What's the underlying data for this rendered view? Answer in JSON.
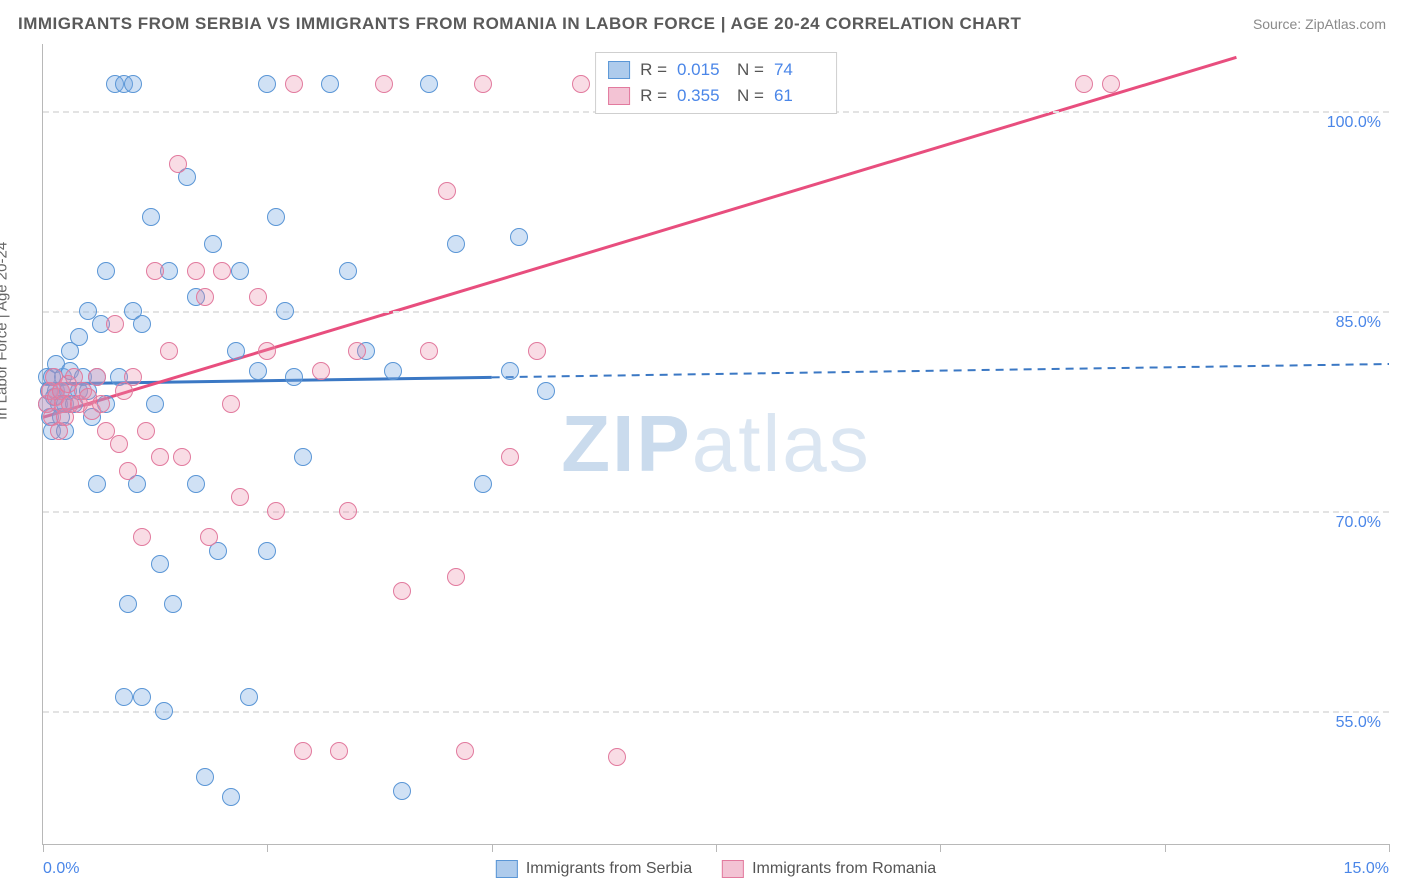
{
  "title": "IMMIGRANTS FROM SERBIA VS IMMIGRANTS FROM ROMANIA IN LABOR FORCE | AGE 20-24 CORRELATION CHART",
  "source": "Source: ZipAtlas.com",
  "watermark_bold": "ZIP",
  "watermark_rest": "atlas",
  "y_axis_label": "In Labor Force | Age 20-24",
  "x_min_label": "0.0%",
  "x_max_label": "15.0%",
  "chart": {
    "type": "scatter",
    "xlim": [
      0,
      15
    ],
    "ylim": [
      45,
      105
    ],
    "y_ticks": [
      55.0,
      70.0,
      85.0,
      100.0
    ],
    "y_tick_labels": [
      "55.0%",
      "70.0%",
      "85.0%",
      "100.0%"
    ],
    "x_ticks": [
      0,
      2.5,
      5.0,
      7.5,
      10.0,
      12.5,
      15.0
    ],
    "grid_color": "#e3e3e3",
    "background_color": "#ffffff",
    "axis_color": "#b8b8b8",
    "tick_label_color": "#4a86e8",
    "axis_label_color": "#666666",
    "marker_radius": 9,
    "marker_border_width": 1.5,
    "trend_width": 3
  },
  "series": [
    {
      "name": "Immigrants from Serbia",
      "fill_color": "rgba(120,170,225,0.35)",
      "stroke_color": "#5a96d6",
      "swatch_fill": "#aecbec",
      "swatch_border": "#5a96d6",
      "line_color": "#3b78c4",
      "R": "0.015",
      "N": "74",
      "trend": {
        "x1": 0,
        "y1": 79.5,
        "x2": 15,
        "y2": 81.0,
        "solid_until_x": 5.0
      },
      "points": [
        [
          0.05,
          78
        ],
        [
          0.05,
          80
        ],
        [
          0.07,
          79
        ],
        [
          0.08,
          77
        ],
        [
          0.1,
          76
        ],
        [
          0.1,
          80
        ],
        [
          0.12,
          78.5
        ],
        [
          0.15,
          79
        ],
        [
          0.15,
          81
        ],
        [
          0.18,
          78
        ],
        [
          0.2,
          79
        ],
        [
          0.2,
          77
        ],
        [
          0.22,
          80
        ],
        [
          0.25,
          78
        ],
        [
          0.25,
          76
        ],
        [
          0.28,
          79
        ],
        [
          0.3,
          80.5
        ],
        [
          0.3,
          82
        ],
        [
          0.35,
          78
        ],
        [
          0.4,
          79
        ],
        [
          0.4,
          83
        ],
        [
          0.45,
          80
        ],
        [
          0.5,
          79
        ],
        [
          0.5,
          85
        ],
        [
          0.55,
          77
        ],
        [
          0.6,
          80
        ],
        [
          0.6,
          72
        ],
        [
          0.65,
          84
        ],
        [
          0.7,
          78
        ],
        [
          0.7,
          88
        ],
        [
          0.8,
          102
        ],
        [
          0.85,
          80
        ],
        [
          0.9,
          56
        ],
        [
          0.9,
          102
        ],
        [
          0.95,
          63
        ],
        [
          1.0,
          102
        ],
        [
          1.0,
          85
        ],
        [
          1.05,
          72
        ],
        [
          1.1,
          84
        ],
        [
          1.1,
          56
        ],
        [
          1.2,
          92
        ],
        [
          1.25,
          78
        ],
        [
          1.3,
          66
        ],
        [
          1.35,
          55
        ],
        [
          1.4,
          88
        ],
        [
          1.45,
          63
        ],
        [
          1.6,
          95
        ],
        [
          1.7,
          86
        ],
        [
          1.7,
          72
        ],
        [
          1.8,
          50
        ],
        [
          1.9,
          90
        ],
        [
          1.95,
          67
        ],
        [
          2.1,
          48.5
        ],
        [
          2.15,
          82
        ],
        [
          2.2,
          88
        ],
        [
          2.3,
          56
        ],
        [
          2.4,
          80.5
        ],
        [
          2.5,
          102
        ],
        [
          2.5,
          67
        ],
        [
          2.6,
          92
        ],
        [
          2.7,
          85
        ],
        [
          2.8,
          80
        ],
        [
          2.9,
          74
        ],
        [
          3.2,
          102
        ],
        [
          3.4,
          88
        ],
        [
          3.6,
          82
        ],
        [
          3.9,
          80.5
        ],
        [
          4.0,
          49
        ],
        [
          4.3,
          102
        ],
        [
          4.6,
          90
        ],
        [
          4.9,
          72
        ],
        [
          5.2,
          80.5
        ],
        [
          5.3,
          90.5
        ],
        [
          5.6,
          79
        ]
      ]
    },
    {
      "name": "Immigrants from Romania",
      "fill_color": "rgba(235,140,170,0.30)",
      "stroke_color": "#e27a9e",
      "swatch_fill": "#f3c3d4",
      "swatch_border": "#e27a9e",
      "line_color": "#e84e7e",
      "R": "0.355",
      "N": "61",
      "trend": {
        "x1": 0,
        "y1": 77.0,
        "x2": 13.3,
        "y2": 104.0,
        "solid_until_x": 13.3
      },
      "points": [
        [
          0.05,
          78
        ],
        [
          0.08,
          79
        ],
        [
          0.1,
          77
        ],
        [
          0.12,
          80
        ],
        [
          0.15,
          78.5
        ],
        [
          0.18,
          76
        ],
        [
          0.2,
          79
        ],
        [
          0.22,
          78
        ],
        [
          0.25,
          77
        ],
        [
          0.28,
          79.5
        ],
        [
          0.3,
          78
        ],
        [
          0.35,
          80
        ],
        [
          0.4,
          78
        ],
        [
          0.45,
          79
        ],
        [
          0.5,
          78.5
        ],
        [
          0.55,
          77.5
        ],
        [
          0.6,
          80
        ],
        [
          0.65,
          78
        ],
        [
          0.7,
          76
        ],
        [
          0.8,
          84
        ],
        [
          0.85,
          75
        ],
        [
          0.9,
          79
        ],
        [
          0.95,
          73
        ],
        [
          1.0,
          80
        ],
        [
          1.1,
          68
        ],
        [
          1.15,
          76
        ],
        [
          1.25,
          88
        ],
        [
          1.3,
          74
        ],
        [
          1.4,
          82
        ],
        [
          1.5,
          96
        ],
        [
          1.55,
          74
        ],
        [
          1.7,
          88
        ],
        [
          1.8,
          86
        ],
        [
          1.85,
          68
        ],
        [
          2.0,
          88
        ],
        [
          2.1,
          78
        ],
        [
          2.2,
          71
        ],
        [
          2.4,
          86
        ],
        [
          2.5,
          82
        ],
        [
          2.6,
          70
        ],
        [
          2.8,
          102
        ],
        [
          2.9,
          52
        ],
        [
          3.1,
          80.5
        ],
        [
          3.3,
          52
        ],
        [
          3.4,
          70
        ],
        [
          3.5,
          82
        ],
        [
          3.8,
          102
        ],
        [
          4.0,
          64
        ],
        [
          4.3,
          82
        ],
        [
          4.5,
          94
        ],
        [
          4.6,
          65
        ],
        [
          4.7,
          52
        ],
        [
          4.9,
          102
        ],
        [
          5.2,
          74
        ],
        [
          5.5,
          82
        ],
        [
          6.0,
          102
        ],
        [
          6.4,
          51.5
        ],
        [
          7.2,
          102
        ],
        [
          7.9,
          102
        ],
        [
          11.6,
          102
        ],
        [
          11.9,
          102
        ]
      ]
    }
  ],
  "top_legend": {
    "rows": [
      {
        "swatch_fill": "#aecbec",
        "swatch_border": "#5a96d6",
        "r_label": "R  =",
        "r_val": "0.015",
        "n_label": "N  =",
        "n_val": "74"
      },
      {
        "swatch_fill": "#f3c3d4",
        "swatch_border": "#e27a9e",
        "r_label": "R  =",
        "r_val": "0.355",
        "n_label": "N  =",
        "n_val": "61"
      }
    ]
  }
}
